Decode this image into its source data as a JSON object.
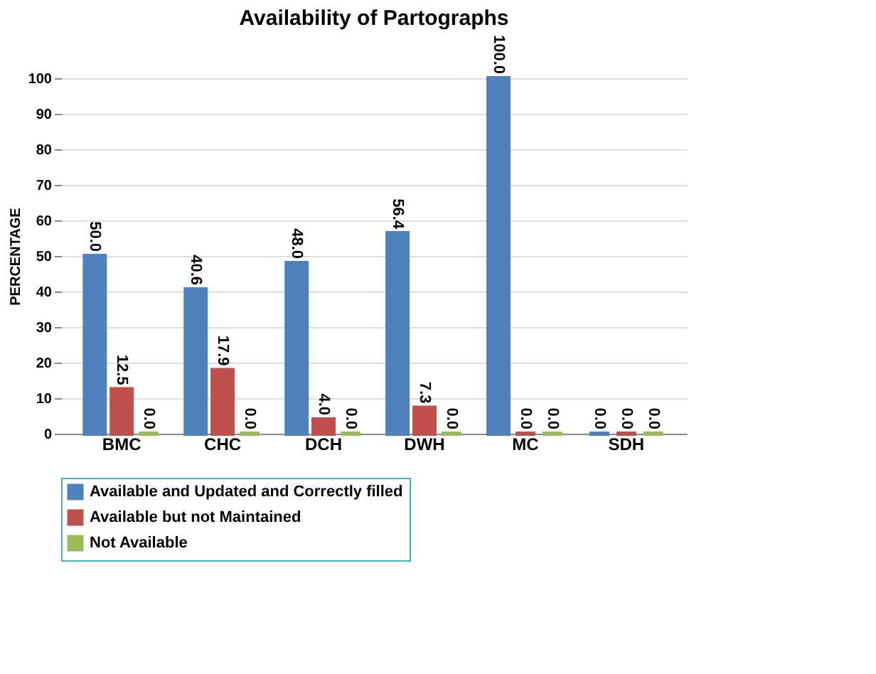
{
  "chart_data": {
    "type": "bar",
    "title": "Availability of Partographs",
    "ylabel": "PERCENTAGE",
    "categories": [
      "BMC",
      "CHC",
      "DCH",
      "DWH",
      "MC",
      "SDH"
    ],
    "series": [
      {
        "name": "Available and Updated and Correctly filled",
        "color": "#4f81bd",
        "values": [
          50.0,
          40.6,
          48.0,
          56.4,
          100.0,
          0.0
        ],
        "value_labels": [
          "50.0",
          "40.6",
          "48.0",
          "56.4",
          "100.0",
          "0.0"
        ]
      },
      {
        "name": "Available but not Maintained",
        "color": "#c0504d",
        "values": [
          12.5,
          17.9,
          4.0,
          7.3,
          0.0,
          0.0
        ],
        "value_labels": [
          "12.5",
          "17.9",
          "4.0",
          "7.3",
          "0.0",
          "0.0"
        ]
      },
      {
        "name": "Not Available",
        "color": "#9bbb59",
        "values": [
          0.0,
          0.0,
          0.0,
          0.0,
          0.0,
          0.0
        ],
        "value_labels": [
          "0.0",
          "0.0",
          "0.0",
          "0.0",
          "0.0",
          "0.0"
        ]
      }
    ],
    "ylim": [
      0,
      100
    ],
    "yticks": [
      0,
      10,
      20,
      30,
      40,
      50,
      60,
      70,
      80,
      90,
      100
    ],
    "grid": "y",
    "legend": "bottom"
  }
}
